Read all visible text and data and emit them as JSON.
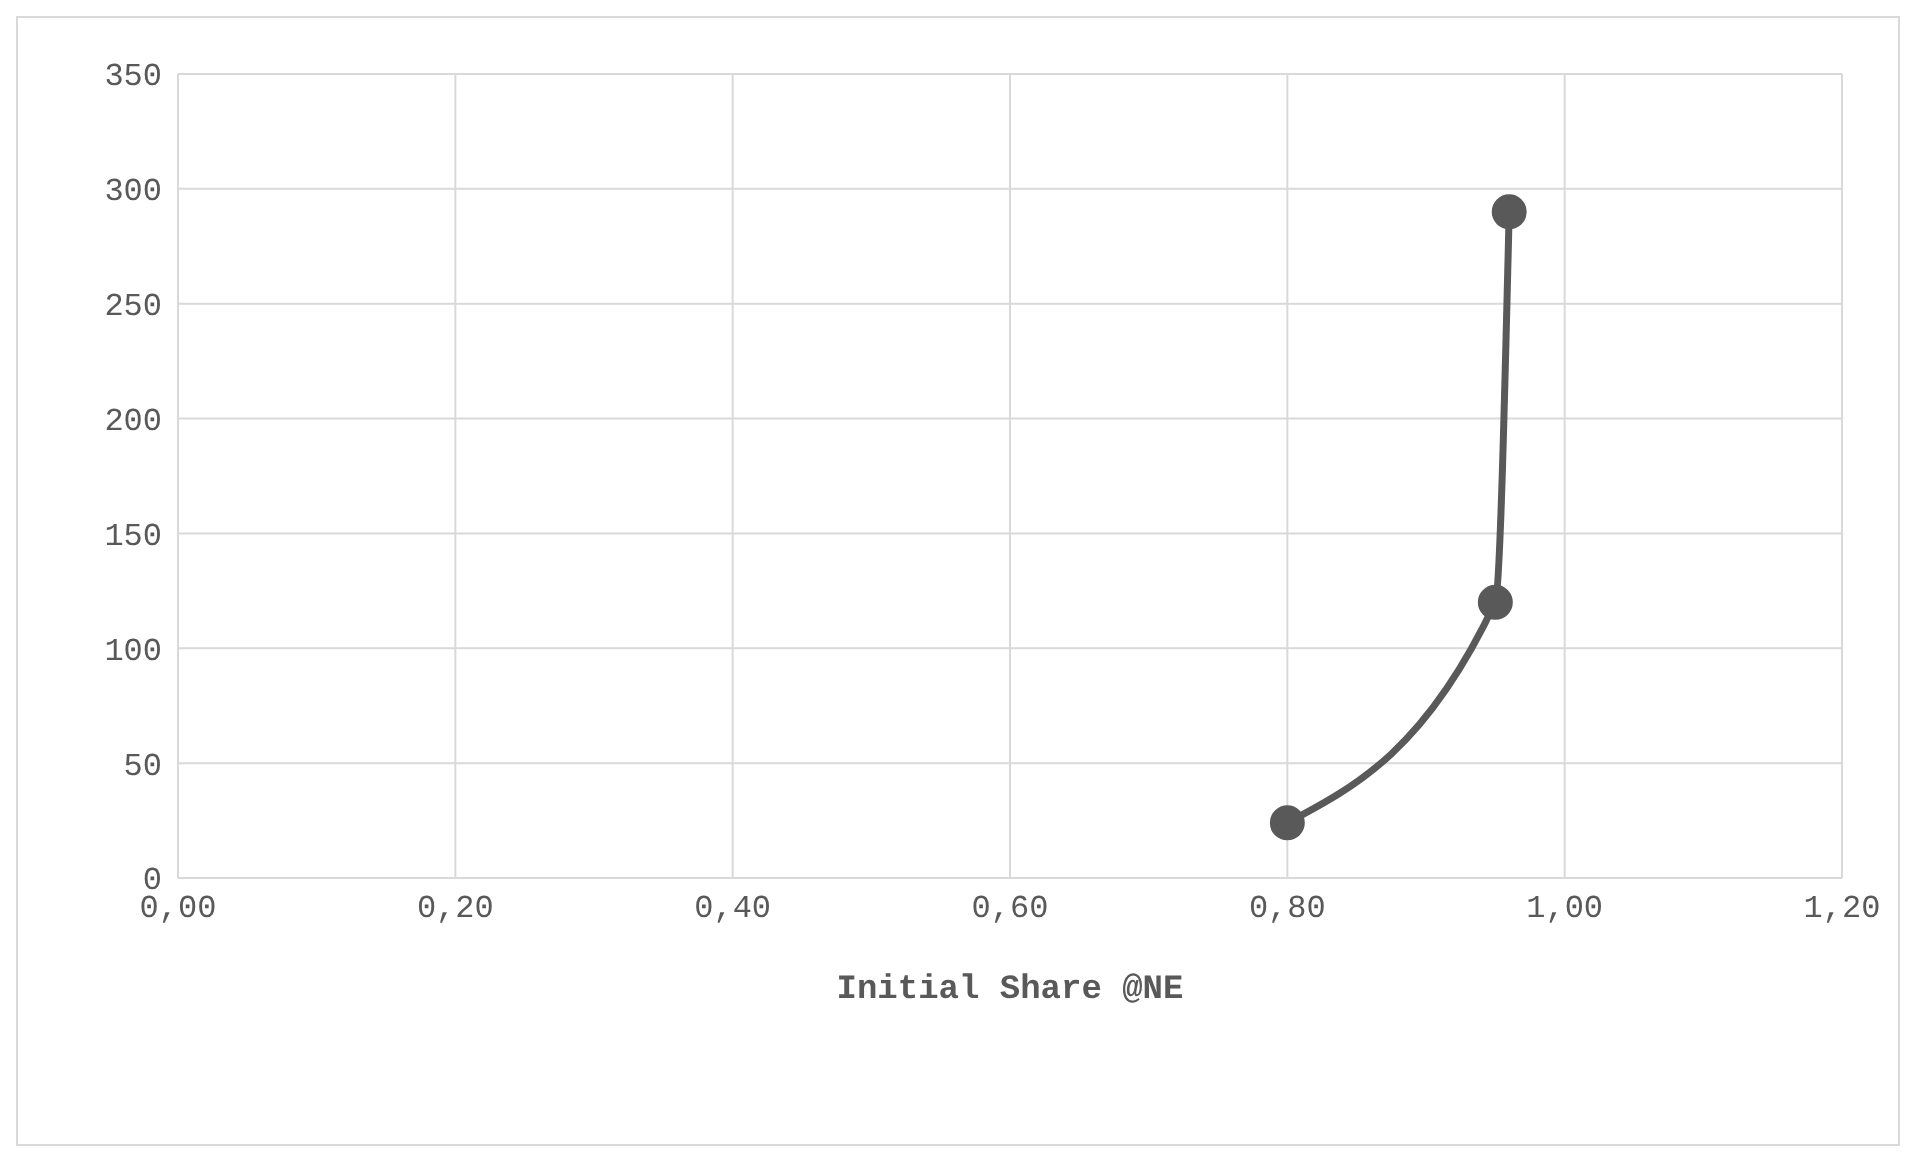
{
  "chart_data": {
    "type": "line",
    "xlabel": "Initial Share @NE",
    "x": [
      0.8,
      0.95,
      0.96
    ],
    "series": [
      {
        "color": "#595959",
        "values": [
          24,
          120,
          290
        ]
      }
    ],
    "xlim": [
      0,
      1.2
    ],
    "xticks": [
      {
        "value": 0,
        "label": "0,00"
      },
      {
        "value": 0.2,
        "label": "0,20"
      },
      {
        "value": 0.4,
        "label": "0,40"
      },
      {
        "value": 0.6,
        "label": "0,60"
      },
      {
        "value": 0.8,
        "label": "0,80"
      },
      {
        "value": 1,
        "label": "1,00"
      },
      {
        "value": 1.2,
        "label": "1,20"
      }
    ],
    "ylim": [
      0,
      350
    ],
    "yticks": [
      0,
      50,
      100,
      150,
      200,
      250,
      300,
      350
    ],
    "grid": true,
    "marker": "circle",
    "line_style": "solid",
    "legend": false
  }
}
